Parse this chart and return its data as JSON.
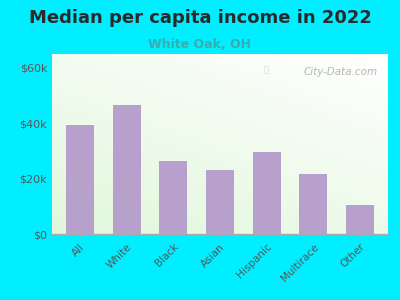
{
  "title": "Median per capita income in 2022",
  "subtitle": "White Oak, OH",
  "categories": [
    "All",
    "White",
    "Black",
    "Asian",
    "Hispanic",
    "Multirace",
    "Other"
  ],
  "values": [
    39500,
    46500,
    26500,
    23000,
    29500,
    21500,
    10500
  ],
  "bar_color": "#b8a0cc",
  "background_outer": "#00eeff",
  "title_color": "#2a2a2a",
  "subtitle_color": "#3aacb0",
  "tick_color": "#555555",
  "ylim": [
    0,
    65000
  ],
  "yticks": [
    0,
    20000,
    40000,
    60000
  ],
  "ytick_labels": [
    "$0",
    "$20k",
    "$40k",
    "$60k"
  ],
  "watermark": "City-Data.com",
  "title_fontsize": 13,
  "subtitle_fontsize": 9
}
